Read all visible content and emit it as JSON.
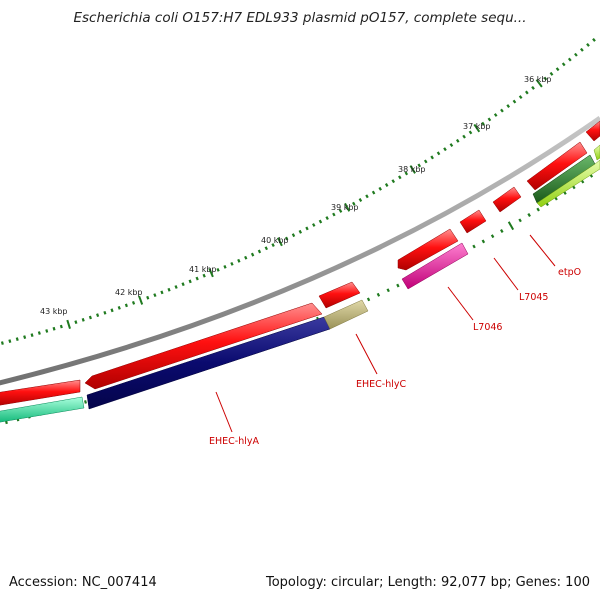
{
  "title": "Escherichia coli O157:H7 EDL933 plasmid pO157, complete sequ...",
  "footer": {
    "accession": "Accession: NC_007414",
    "summary": "Topology: circular; Length: 92,077 bp; Genes: 100"
  },
  "ruler": {
    "tick_color": "#1f7a1f",
    "labels": [
      "36 kbp",
      "37 kbp",
      "38 kbp",
      "39 kbp",
      "40 kbp",
      "41 kbp",
      "42 kbp",
      "43 kbp"
    ]
  },
  "genes": [
    {
      "name": "EHEC-hlyA",
      "color": "#0a0a6e"
    },
    {
      "name": "EHEC-hlyC",
      "color": "#b8b070"
    },
    {
      "name": "L7046",
      "color": "#e8189a"
    },
    {
      "name": "L7045",
      "color": "#ee0000"
    },
    {
      "name": "etpO",
      "color": "#ee0000"
    }
  ],
  "colors": {
    "backbone": "#8a8a8a",
    "forward_red": "#ee0000",
    "teal": "#22dd99",
    "green": "#2a7a2a",
    "lime": "#b6f03a"
  }
}
